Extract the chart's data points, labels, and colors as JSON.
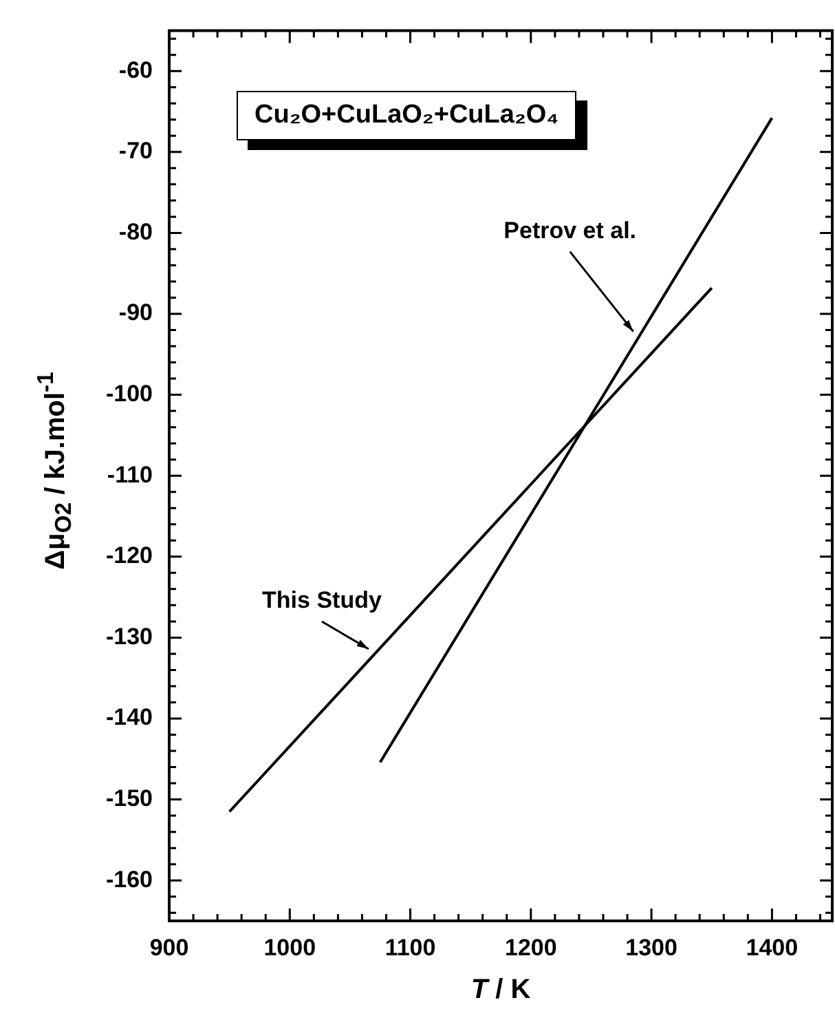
{
  "chart_data": {
    "type": "line",
    "xlabel": "T / K",
    "ylabel": "Δμ$_{O2}$ / kJ.mol$^{-1}$",
    "annotations": [
      "Cu₂O+CuLaO₂+CuLa₂O₄"
    ],
    "series": [
      {
        "name": "This Study",
        "color": "#000000",
        "x": [
          950,
          1350
        ],
        "values": [
          -151.5,
          -86.8
        ]
      },
      {
        "name": "Petrov et al.",
        "color": "#000000",
        "x": [
          1075,
          1400
        ],
        "values": [
          -145.4,
          -65.8
        ]
      }
    ],
    "xlim": [
      900,
      1450
    ],
    "xticks": [
      900,
      1000,
      1100,
      1200,
      1300,
      1400
    ],
    "ylim": [
      -165,
      -55
    ],
    "yticks": [
      -160,
      -150,
      -140,
      -130,
      -120,
      -110,
      -100,
      -90,
      -80,
      -70,
      -60
    ],
    "grid": false,
    "legend": false,
    "marker": "none",
    "line_style": "solid"
  }
}
